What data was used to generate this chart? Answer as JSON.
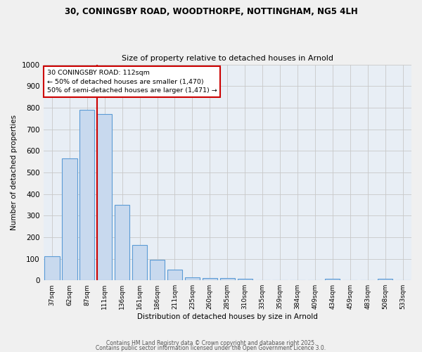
{
  "title_line1": "30, CONINGSBY ROAD, WOODTHORPE, NOTTINGHAM, NG5 4LH",
  "title_line2": "Size of property relative to detached houses in Arnold",
  "xlabel": "Distribution of detached houses by size in Arnold",
  "ylabel": "Number of detached properties",
  "categories": [
    "37sqm",
    "62sqm",
    "87sqm",
    "111sqm",
    "136sqm",
    "161sqm",
    "186sqm",
    "211sqm",
    "235sqm",
    "260sqm",
    "285sqm",
    "310sqm",
    "335sqm",
    "359sqm",
    "384sqm",
    "409sqm",
    "434sqm",
    "459sqm",
    "483sqm",
    "508sqm",
    "533sqm"
  ],
  "values": [
    110,
    565,
    790,
    770,
    350,
    165,
    95,
    50,
    15,
    12,
    12,
    8,
    0,
    0,
    0,
    0,
    8,
    0,
    0,
    8,
    0
  ],
  "bar_color": "#c8d9ee",
  "bar_edge_color": "#5b9bd5",
  "grid_color": "#c8c8c8",
  "bg_color": "#e8eef5",
  "fig_bg_color": "#f0f0f0",
  "red_line_color": "#cc0000",
  "annotation_text": "30 CONINGSBY ROAD: 112sqm\n← 50% of detached houses are smaller (1,470)\n50% of semi-detached houses are larger (1,471) →",
  "annotation_box_color": "#ffffff",
  "annotation_border_color": "#cc0000",
  "ylim": [
    0,
    1000
  ],
  "yticks": [
    0,
    100,
    200,
    300,
    400,
    500,
    600,
    700,
    800,
    900,
    1000
  ],
  "footer_line1": "Contains HM Land Registry data © Crown copyright and database right 2025.",
  "footer_line2": "Contains public sector information licensed under the Open Government Licence 3.0."
}
